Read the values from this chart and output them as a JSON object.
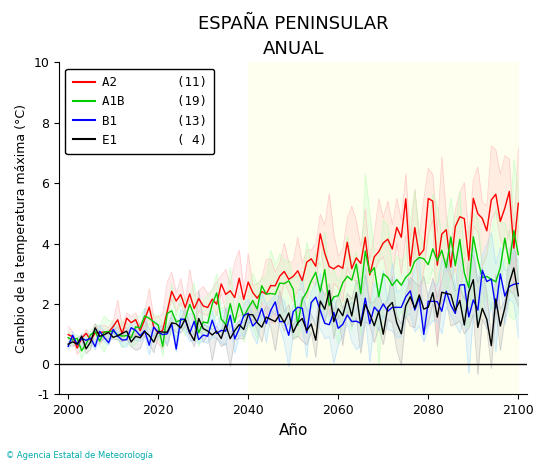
{
  "title": "ESPAÑA PENINSULAR",
  "subtitle": "ANUAL",
  "xlabel": "Año",
  "ylabel": "Cambio de la temperatura máxima (°C)",
  "xlim": [
    1998,
    2102
  ],
  "ylim": [
    -1,
    10
  ],
  "yticks": [
    -1,
    0,
    2,
    4,
    6,
    8,
    10
  ],
  "xticks": [
    2000,
    2020,
    2040,
    2060,
    2080,
    2100
  ],
  "scenarios": [
    "A2",
    "A1B",
    "B1",
    "E1"
  ],
  "scenario_counts": [
    11,
    19,
    13,
    4
  ],
  "scenario_colors": [
    "#ff0000",
    "#00cc00",
    "#0000ff",
    "#000000"
  ],
  "scenario_fill_colors": [
    "#ffbbbb",
    "#bbffbb",
    "#aaddff",
    "#bbbbbb"
  ],
  "highlight_region": [
    2040,
    2100
  ],
  "highlight_color": "#fffff0",
  "hline_y": 0,
  "background_color": "#ffffff",
  "title_fontsize": 13,
  "subtitle_fontsize": 10,
  "axis_label_fontsize": 9,
  "xlabel_fontsize": 11,
  "tick_fontsize": 9,
  "legend_fontsize": 9
}
